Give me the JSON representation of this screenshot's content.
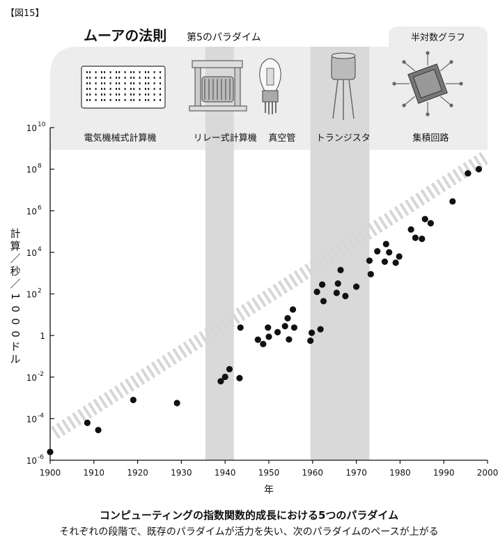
{
  "figure_label": "【図15】",
  "caption": {
    "main": "コンピューティングの指数関数的成長における5つのパラダイム",
    "sub": "それぞれの段階で、既存のパラダイムが活力を失い、次のパラダイムのペースが上がる"
  },
  "chart_data": {
    "type": "scatter",
    "title": "ムーアの法則",
    "subtitle": "第5のパラダイム",
    "corner_label": "半対数グラフ",
    "xlabel": "年",
    "ylabel": "計算／秒／1000ドル",
    "y_scale": "log",
    "xlim": [
      1900,
      2000
    ],
    "ylim_exp": [
      -6,
      10
    ],
    "x_ticks": [
      1900,
      1910,
      1920,
      1930,
      1940,
      1950,
      1960,
      1970,
      1980,
      1990,
      2000
    ],
    "y_ticks": [
      {
        "exp": -6,
        "base": "10",
        "sup": "-6"
      },
      {
        "exp": -4,
        "base": "10",
        "sup": "-4"
      },
      {
        "exp": -2,
        "base": "10",
        "sup": "-2"
      },
      {
        "exp": 0,
        "base": "1",
        "sup": ""
      },
      {
        "exp": 2,
        "base": "10",
        "sup": "2"
      },
      {
        "exp": 4,
        "base": "10",
        "sup": "4"
      },
      {
        "exp": 6,
        "base": "10",
        "sup": "6"
      },
      {
        "exp": 8,
        "base": "10",
        "sup": "8"
      },
      {
        "exp": 10,
        "base": "10",
        "sup": "10"
      }
    ],
    "paradigms": [
      {
        "name": "電気機械式計算機",
        "label_x": 1916,
        "shaded": false
      },
      {
        "name": "リレー式計算機",
        "label_x": 1940,
        "shaded": true,
        "band": [
          1935.5,
          1942
        ]
      },
      {
        "name": "真空管",
        "label_x": 1953,
        "shaded": false
      },
      {
        "name": "トランジスタ",
        "label_x": 1967,
        "shaded": true,
        "band": [
          1959.5,
          1973
        ]
      },
      {
        "name": "集積回路",
        "label_x": 1987,
        "shaded": false
      }
    ],
    "trend": {
      "x": [
        1901,
        1999
      ],
      "y_exp": [
        -4.7,
        8.5
      ]
    },
    "points": [
      {
        "x": 1900,
        "y_exp": -5.6
      },
      {
        "x": 1908.5,
        "y_exp": -4.2
      },
      {
        "x": 1911,
        "y_exp": -4.55
      },
      {
        "x": 1919,
        "y_exp": -3.1
      },
      {
        "x": 1929,
        "y_exp": -3.25
      },
      {
        "x": 1939,
        "y_exp": -2.2
      },
      {
        "x": 1940,
        "y_exp": -1.99
      },
      {
        "x": 1941,
        "y_exp": -1.62
      },
      {
        "x": 1943.3,
        "y_exp": -2.05
      },
      {
        "x": 1943.5,
        "y_exp": 0.38
      },
      {
        "x": 1947.5,
        "y_exp": -0.2
      },
      {
        "x": 1948.7,
        "y_exp": -0.41
      },
      {
        "x": 1949.8,
        "y_exp": 0.38
      },
      {
        "x": 1950,
        "y_exp": -0.06
      },
      {
        "x": 1952,
        "y_exp": 0.16
      },
      {
        "x": 1953.7,
        "y_exp": 0.45
      },
      {
        "x": 1954.3,
        "y_exp": 0.83
      },
      {
        "x": 1954.6,
        "y_exp": -0.19
      },
      {
        "x": 1955.5,
        "y_exp": 1.25
      },
      {
        "x": 1955.8,
        "y_exp": 0.38
      },
      {
        "x": 1959.5,
        "y_exp": -0.25
      },
      {
        "x": 1959.8,
        "y_exp": 0.13
      },
      {
        "x": 1961,
        "y_exp": 2.1
      },
      {
        "x": 1961.8,
        "y_exp": 0.3
      },
      {
        "x": 1962.2,
        "y_exp": 2.45
      },
      {
        "x": 1962.5,
        "y_exp": 1.65
      },
      {
        "x": 1965.5,
        "y_exp": 2.05
      },
      {
        "x": 1965.8,
        "y_exp": 2.5
      },
      {
        "x": 1966.4,
        "y_exp": 3.15
      },
      {
        "x": 1967.5,
        "y_exp": 1.9
      },
      {
        "x": 1970,
        "y_exp": 2.35
      },
      {
        "x": 1973,
        "y_exp": 3.6
      },
      {
        "x": 1973.3,
        "y_exp": 2.95
      },
      {
        "x": 1974.8,
        "y_exp": 4.05
      },
      {
        "x": 1976.5,
        "y_exp": 3.55
      },
      {
        "x": 1976.8,
        "y_exp": 4.4
      },
      {
        "x": 1977.5,
        "y_exp": 4.0
      },
      {
        "x": 1979,
        "y_exp": 3.5
      },
      {
        "x": 1979.8,
        "y_exp": 3.8
      },
      {
        "x": 1982.5,
        "y_exp": 5.1
      },
      {
        "x": 1983.5,
        "y_exp": 4.7
      },
      {
        "x": 1985,
        "y_exp": 4.65
      },
      {
        "x": 1985.7,
        "y_exp": 5.6
      },
      {
        "x": 1987,
        "y_exp": 5.4
      },
      {
        "x": 1992,
        "y_exp": 6.45
      },
      {
        "x": 1995.5,
        "y_exp": 7.8
      },
      {
        "x": 1998,
        "y_exp": 8.0
      }
    ]
  }
}
